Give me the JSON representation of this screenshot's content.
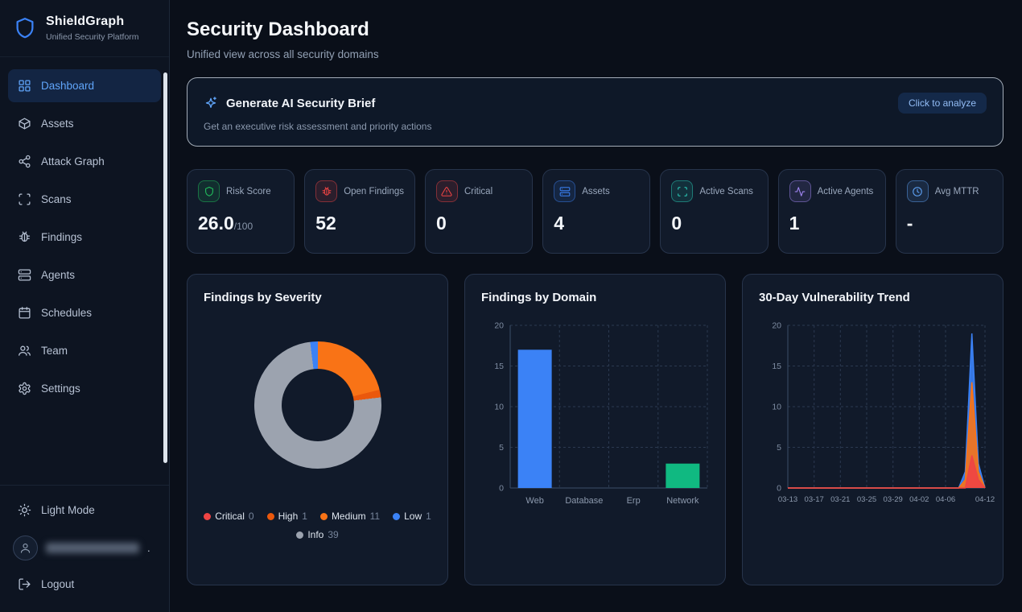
{
  "app": {
    "name": "ShieldGraph",
    "tagline": "Unified Security Platform"
  },
  "sidebar": {
    "items": [
      {
        "label": "Dashboard",
        "icon": "grid",
        "active": true
      },
      {
        "label": "Assets",
        "icon": "box",
        "active": false
      },
      {
        "label": "Attack Graph",
        "icon": "share",
        "active": false
      },
      {
        "label": "Scans",
        "icon": "scan",
        "active": false
      },
      {
        "label": "Findings",
        "icon": "bug",
        "active": false
      },
      {
        "label": "Agents",
        "icon": "server",
        "active": false
      },
      {
        "label": "Schedules",
        "icon": "calendar",
        "active": false
      },
      {
        "label": "Team",
        "icon": "users",
        "active": false
      },
      {
        "label": "Settings",
        "icon": "settings",
        "active": false
      }
    ],
    "light_mode_label": "Light Mode",
    "logout_label": "Logout",
    "user_suffix": "."
  },
  "page": {
    "title": "Security Dashboard",
    "subtitle": "Unified view across all security domains"
  },
  "ai_banner": {
    "icon": "sparkles",
    "title": "Generate AI Security Brief",
    "subtitle": "Get an executive risk assessment and priority actions",
    "button": "Click to analyze"
  },
  "stats": [
    {
      "label": "Risk Score",
      "value": "26.0",
      "suffix": "/100",
      "icon": "shield",
      "color": "#22c55e"
    },
    {
      "label": "Open Findings",
      "value": "52",
      "suffix": "",
      "icon": "bug",
      "color": "#ef4444"
    },
    {
      "label": "Critical",
      "value": "0",
      "suffix": "",
      "icon": "alert",
      "color": "#ef4444"
    },
    {
      "label": "Assets",
      "value": "4",
      "suffix": "",
      "icon": "server",
      "color": "#3b82f6"
    },
    {
      "label": "Active Scans",
      "value": "0",
      "suffix": "",
      "icon": "scan",
      "color": "#2dd4bf"
    },
    {
      "label": "Active Agents",
      "value": "1",
      "suffix": "",
      "icon": "activity",
      "color": "#a78bfa"
    },
    {
      "label": "Avg MTTR",
      "value": "-",
      "suffix": "",
      "icon": "clock",
      "color": "#60a5fa"
    }
  ],
  "chart_data": [
    {
      "type": "pie",
      "title": "Findings by Severity",
      "donut": true,
      "legend_position": "bottom",
      "slices": [
        {
          "label": "Critical",
          "value": 0,
          "color": "#ef4444"
        },
        {
          "label": "High",
          "value": 1,
          "color": "#ea580c"
        },
        {
          "label": "Medium",
          "value": 11,
          "color": "#f97316"
        },
        {
          "label": "Low",
          "value": 1,
          "color": "#3b82f6"
        },
        {
          "label": "Info",
          "value": 39,
          "color": "#9ca3af"
        }
      ],
      "render_order": [
        "Low",
        "Medium",
        "High",
        "Info"
      ],
      "start_angle_deg": -7
    },
    {
      "type": "bar",
      "title": "Findings by Domain",
      "categories": [
        "Web",
        "Database",
        "Erp",
        "Network"
      ],
      "values": [
        17,
        0,
        0,
        3
      ],
      "bar_colors": [
        "#3b82f6",
        "#3b82f6",
        "#3b82f6",
        "#10b981"
      ],
      "ylim": [
        0,
        20
      ],
      "yticks": [
        0,
        5,
        10,
        15,
        20
      ],
      "grid": "dashed"
    },
    {
      "type": "area",
      "title": "30-Day Vulnerability Trend",
      "x_tick_labels": [
        "03-13",
        "03-17",
        "03-21",
        "03-25",
        "03-29",
        "04-02",
        "04-06",
        "04-12"
      ],
      "x_tick_positions": [
        0,
        4,
        8,
        12,
        16,
        20,
        24,
        30
      ],
      "n_points": 31,
      "ylim": [
        0,
        20
      ],
      "yticks": [
        0,
        5,
        10,
        15,
        20
      ],
      "grid": "dashed",
      "series": [
        {
          "name": "blue-series",
          "color": "#3b82f6",
          "values": [
            0,
            0,
            0,
            0,
            0,
            0,
            0,
            0,
            0,
            0,
            0,
            0,
            0,
            0,
            0,
            0,
            0,
            0,
            0,
            0,
            0,
            0,
            0,
            0,
            0,
            0,
            0,
            2,
            19,
            3,
            0
          ]
        },
        {
          "name": "orange-series",
          "color": "#f97316",
          "values": [
            0,
            0,
            0,
            0,
            0,
            0,
            0,
            0,
            0,
            0,
            0,
            0,
            0,
            0,
            0,
            0,
            0,
            0,
            0,
            0,
            0,
            0,
            0,
            0,
            0,
            0,
            0,
            1,
            13,
            2,
            0
          ]
        },
        {
          "name": "red-series",
          "color": "#ef4444",
          "values": [
            0,
            0,
            0,
            0,
            0,
            0,
            0,
            0,
            0,
            0,
            0,
            0,
            0,
            0,
            0,
            0,
            0,
            0,
            0,
            0,
            0,
            0,
            0,
            0,
            0,
            0,
            0,
            0,
            4,
            1,
            0
          ]
        }
      ]
    }
  ]
}
